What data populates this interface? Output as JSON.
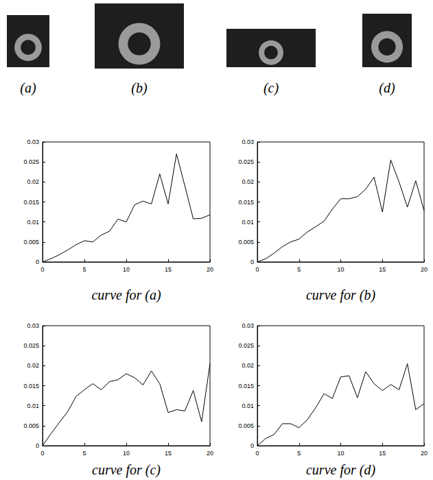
{
  "images": [
    {
      "label": "(a)"
    },
    {
      "label": "(b)"
    },
    {
      "label": "(c)"
    },
    {
      "label": "(d)"
    }
  ],
  "chart_data": [
    {
      "type": "line",
      "title": "curve for (a)",
      "color": "#000000",
      "grid": false,
      "x": [
        0,
        1,
        2,
        3,
        4,
        5,
        6,
        7,
        8,
        9,
        10,
        11,
        12,
        13,
        14,
        15,
        16,
        17,
        18,
        19,
        20
      ],
      "values": [
        0,
        0.0008,
        0.0018,
        0.003,
        0.0043,
        0.0053,
        0.005,
        0.0067,
        0.0077,
        0.0107,
        0.01,
        0.0143,
        0.0152,
        0.0145,
        0.022,
        0.0145,
        0.027,
        0.019,
        0.0108,
        0.0109,
        0.0118
      ],
      "xlim": [
        0,
        20
      ],
      "xticks": [
        0,
        5,
        10,
        15,
        20
      ],
      "ylim": [
        0,
        0.03
      ],
      "yticks": [
        0,
        0.005,
        0.01,
        0.015,
        0.02,
        0.025,
        0.03
      ]
    },
    {
      "type": "line",
      "title": "curve for (b)",
      "color": "#000000",
      "grid": false,
      "x": [
        0,
        1,
        2,
        3,
        4,
        5,
        6,
        7,
        8,
        9,
        10,
        11,
        12,
        13,
        14,
        15,
        16,
        17,
        18,
        19,
        20
      ],
      "values": [
        0,
        0.0008,
        0.0022,
        0.0038,
        0.005,
        0.0057,
        0.0075,
        0.0088,
        0.0102,
        0.0132,
        0.0158,
        0.0158,
        0.0163,
        0.0182,
        0.0212,
        0.0125,
        0.0255,
        0.02,
        0.0137,
        0.0203,
        0.0128
      ],
      "xlim": [
        0,
        20
      ],
      "xticks": [
        0,
        5,
        10,
        15,
        20
      ],
      "ylim": [
        0,
        0.03
      ],
      "yticks": [
        0,
        0.005,
        0.01,
        0.015,
        0.02,
        0.025,
        0.03
      ]
    },
    {
      "type": "line",
      "title": "curve for (c)",
      "color": "#000000",
      "grid": false,
      "x": [
        0,
        1,
        2,
        3,
        4,
        5,
        6,
        7,
        8,
        9,
        10,
        11,
        12,
        13,
        14,
        15,
        16,
        17,
        18,
        19,
        20
      ],
      "values": [
        0,
        0.003,
        0.0058,
        0.0085,
        0.0123,
        0.014,
        0.0155,
        0.014,
        0.016,
        0.0165,
        0.018,
        0.017,
        0.0152,
        0.0187,
        0.0155,
        0.0083,
        0.009,
        0.0087,
        0.0138,
        0.006,
        0.0205
      ],
      "xlim": [
        0,
        20
      ],
      "xticks": [
        0,
        5,
        10,
        15,
        20
      ],
      "ylim": [
        0,
        0.03
      ],
      "yticks": [
        0,
        0.005,
        0.01,
        0.015,
        0.02,
        0.025,
        0.03
      ]
    },
    {
      "type": "line",
      "title": "curve for (d)",
      "color": "#000000",
      "grid": false,
      "x": [
        0,
        1,
        2,
        3,
        4,
        5,
        6,
        7,
        8,
        9,
        10,
        11,
        12,
        13,
        14,
        15,
        16,
        17,
        18,
        19,
        20
      ],
      "values": [
        0,
        0.0018,
        0.0028,
        0.0055,
        0.0055,
        0.0045,
        0.0065,
        0.0095,
        0.013,
        0.0118,
        0.0172,
        0.0175,
        0.012,
        0.0185,
        0.0155,
        0.0138,
        0.0153,
        0.014,
        0.0205,
        0.009,
        0.0105
      ],
      "xlim": [
        0,
        20
      ],
      "xticks": [
        0,
        5,
        10,
        15,
        20
      ],
      "ylim": [
        0,
        0.03
      ],
      "yticks": [
        0,
        0.005,
        0.01,
        0.015,
        0.02,
        0.025,
        0.03
      ]
    }
  ]
}
